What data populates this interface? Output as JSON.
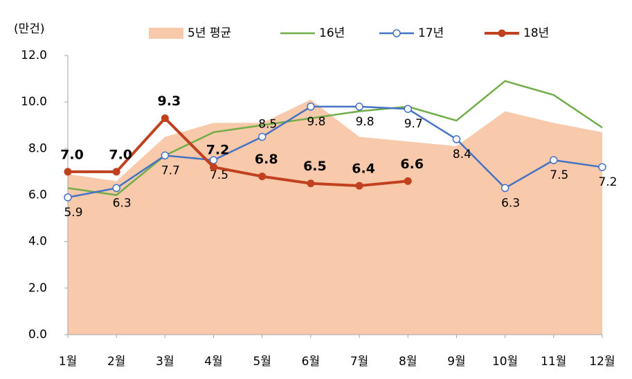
{
  "chart_data": {
    "type": "line",
    "unit_label": "(만건)",
    "categories": [
      "1월",
      "2월",
      "3월",
      "4월",
      "5월",
      "6월",
      "7월",
      "8월",
      "9월",
      "10월",
      "11월",
      "12월"
    ],
    "ylim": [
      0,
      12
    ],
    "yticks": [
      {
        "value": 0,
        "label": "0.0"
      },
      {
        "value": 2,
        "label": "2.0"
      },
      {
        "value": 4,
        "label": "4.0"
      },
      {
        "value": 6,
        "label": "6.0"
      },
      {
        "value": 8,
        "label": "8.0"
      },
      {
        "value": 10,
        "label": "10.0"
      },
      {
        "value": 12,
        "label": "12.0"
      }
    ],
    "series": [
      {
        "name": "5년 평균",
        "kind": "area",
        "color": "#f8c9ab",
        "values": [
          6.9,
          6.6,
          8.5,
          9.1,
          9.1,
          10.1,
          8.5,
          8.3,
          8.1,
          9.6,
          9.1,
          8.7
        ]
      },
      {
        "name": "16년",
        "kind": "line",
        "color": "#70ad47",
        "values": [
          6.3,
          6.0,
          7.7,
          8.7,
          9.0,
          9.3,
          9.6,
          9.8,
          9.2,
          10.9,
          10.3,
          8.9
        ]
      },
      {
        "name": "17년",
        "kind": "line-marker",
        "color": "#4472c4",
        "show_labels": true,
        "values": [
          5.9,
          6.3,
          7.7,
          7.5,
          8.5,
          9.8,
          9.8,
          9.7,
          8.4,
          6.3,
          7.5,
          7.2
        ]
      },
      {
        "name": "18년",
        "kind": "line-dot",
        "color": "#c0401f",
        "values": [
          7.0,
          7.0,
          9.3,
          7.2,
          6.8,
          6.5,
          6.4,
          6.6,
          null,
          null,
          null,
          null
        ],
        "value_labels": [
          "7.0",
          "7.0",
          "9.3",
          "7.2",
          "6.8",
          "6.5",
          "6.4",
          "6.6",
          null,
          null,
          null,
          null
        ]
      }
    ]
  }
}
